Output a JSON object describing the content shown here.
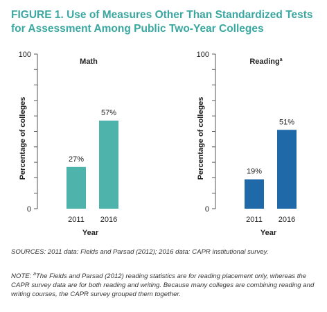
{
  "figure_title": "FIGURE 1. Use of Measures Other Than Standardized Tests for Assessment Among Public Two-Year Colleges",
  "sources": "SOURCES: 2011 data: Fields and Parsad (2012); 2016 data: CAPR institutional survey.",
  "note": {
    "prefix": "NOTE: ",
    "superscript": "a",
    "text": "The Fields and Parsad (2012) reading statistics are for reading placement only, whereas the CAPR survey data are for both reading and writing. Because many colleges are combining reading and writing courses, the CAPR survey grouped them together."
  },
  "chart_data": [
    {
      "type": "bar",
      "title": "Math",
      "title_superscript": "",
      "categories": [
        "2011",
        "2016"
      ],
      "values": [
        27,
        57
      ],
      "value_labels": [
        "27%",
        "57%"
      ],
      "xlabel": "Year",
      "ylabel": "Percentage of colleges",
      "ylim": [
        0,
        100
      ],
      "ytick_labels": [
        "0",
        "100"
      ],
      "color": "#4db3ab",
      "grid": false
    },
    {
      "type": "bar",
      "title": "Reading",
      "title_superscript": "a",
      "categories": [
        "2011",
        "2016"
      ],
      "values": [
        19,
        51
      ],
      "value_labels": [
        "19%",
        "51%"
      ],
      "xlabel": "Year",
      "ylabel": "Percentage of colleges",
      "ylim": [
        0,
        100
      ],
      "ytick_labels": [
        "0",
        "100"
      ],
      "color": "#1f69a8",
      "grid": false
    }
  ]
}
